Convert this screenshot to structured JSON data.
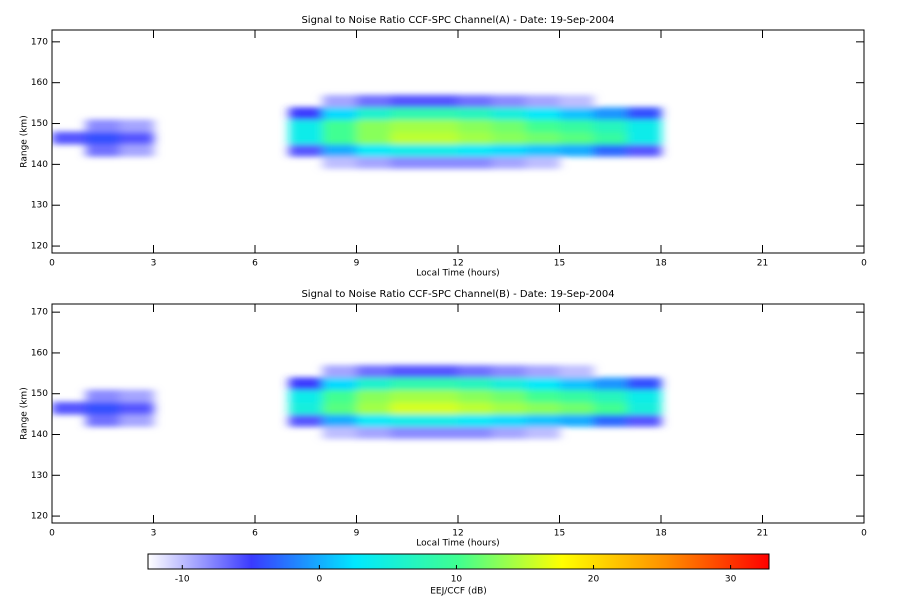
{
  "chart_data": [
    {
      "type": "heatmap",
      "title": "Signal to Noise Ratio CCF-SPC Channel(A) - Date: 19-Sep-2004",
      "xlabel": "Local Time (hours)",
      "ylabel": "Range (km)",
      "xlim": [
        0,
        24
      ],
      "xticks": [
        0,
        3,
        6,
        9,
        12,
        15,
        18,
        21,
        {
          "value": 24,
          "label": "0"
        }
      ],
      "ylim": [
        118.3,
        172.9
      ],
      "yticks": [
        120,
        130,
        140,
        150,
        160,
        170
      ],
      "xbins": [
        0,
        1,
        2,
        3,
        4,
        5,
        6,
        7,
        8,
        9,
        10,
        11,
        12,
        13,
        14,
        15,
        16,
        17,
        18,
        19,
        20,
        21,
        22,
        23,
        24
      ],
      "ybins": [
        139,
        142,
        145,
        148,
        151,
        154,
        157
      ],
      "values": [
        [
          null,
          null,
          -6,
          null,
          null,
          null
        ],
        [
          null,
          -7,
          -4,
          -8,
          null,
          null
        ],
        [
          null,
          -9,
          -6,
          -9,
          null,
          null
        ],
        [
          null,
          null,
          null,
          null,
          null,
          null
        ],
        [
          null,
          null,
          null,
          null,
          null,
          null
        ],
        [
          null,
          null,
          null,
          null,
          null,
          null
        ],
        [
          null,
          null,
          null,
          null,
          null,
          null
        ],
        [
          null,
          -6,
          4,
          4,
          -5,
          null
        ],
        [
          -10,
          0,
          10,
          10,
          2,
          -9
        ],
        [
          -9,
          3,
          13,
          13,
          6,
          -7
        ],
        [
          -8,
          4,
          15,
          14,
          8,
          -6
        ],
        [
          -8,
          4,
          15,
          14,
          8,
          -6
        ],
        [
          -8,
          3,
          14,
          13,
          7,
          -7
        ],
        [
          -9,
          2,
          13,
          12,
          5,
          -8
        ],
        [
          -10,
          1,
          12,
          10,
          3,
          -9
        ],
        [
          null,
          0,
          11,
          9,
          1,
          -10
        ],
        [
          null,
          -3,
          9,
          7,
          -1,
          null
        ],
        [
          null,
          -6,
          4,
          4,
          -4,
          null
        ],
        [
          null,
          null,
          null,
          null,
          null,
          null
        ],
        [
          null,
          null,
          null,
          null,
          null,
          null
        ],
        [
          null,
          null,
          null,
          null,
          null,
          null
        ],
        [
          null,
          null,
          null,
          null,
          null,
          null
        ],
        [
          null,
          null,
          null,
          null,
          null,
          null
        ],
        [
          null,
          null,
          null,
          null,
          null,
          null
        ]
      ]
    },
    {
      "type": "heatmap",
      "title": "Signal to Noise Ratio CCF-SPC Channel(B) - Date: 19-Sep-2004",
      "xlabel": "Local Time (hours)",
      "ylabel": "Range (km)",
      "xlim": [
        0,
        24
      ],
      "xticks": [
        0,
        3,
        6,
        9,
        12,
        15,
        18,
        21,
        {
          "value": 24,
          "label": "0"
        }
      ],
      "ylim": [
        118.3,
        172
      ],
      "yticks": [
        120,
        130,
        140,
        150,
        160,
        170
      ],
      "xbins": [
        0,
        1,
        2,
        3,
        4,
        5,
        6,
        7,
        8,
        9,
        10,
        11,
        12,
        13,
        14,
        15,
        16,
        17,
        18,
        19,
        20,
        21,
        22,
        23,
        24
      ],
      "ybins": [
        139,
        142,
        145,
        148,
        151,
        154,
        157
      ],
      "values": [
        [
          null,
          null,
          -6,
          null,
          null,
          null
        ],
        [
          null,
          -7,
          -4,
          -8,
          null,
          null
        ],
        [
          null,
          -9,
          -6,
          -9,
          null,
          null
        ],
        [
          null,
          null,
          null,
          null,
          null,
          null
        ],
        [
          null,
          null,
          null,
          null,
          null,
          null
        ],
        [
          null,
          null,
          null,
          null,
          null,
          null
        ],
        [
          null,
          null,
          null,
          null,
          null,
          null
        ],
        [
          null,
          -6,
          5,
          4,
          -5,
          null
        ],
        [
          -10,
          0,
          11,
          10,
          2,
          -9
        ],
        [
          -9,
          3,
          14,
          13,
          6,
          -7
        ],
        [
          -8,
          4,
          16,
          14,
          8,
          -6
        ],
        [
          -8,
          4,
          16,
          14,
          8,
          -6
        ],
        [
          -8,
          3,
          15,
          13,
          7,
          -7
        ],
        [
          -9,
          2,
          14,
          12,
          5,
          -8
        ],
        [
          -10,
          1,
          13,
          10,
          3,
          -9
        ],
        [
          null,
          0,
          12,
          9,
          1,
          -10
        ],
        [
          null,
          -3,
          10,
          7,
          -1,
          null
        ],
        [
          null,
          -6,
          5,
          4,
          -4,
          null
        ],
        [
          null,
          null,
          null,
          null,
          null,
          null
        ],
        [
          null,
          null,
          null,
          null,
          null,
          null
        ],
        [
          null,
          null,
          null,
          null,
          null,
          null
        ],
        [
          null,
          null,
          null,
          null,
          null,
          null
        ],
        [
          null,
          null,
          null,
          null,
          null,
          null
        ],
        [
          null,
          null,
          null,
          null,
          null,
          null
        ]
      ]
    }
  ],
  "colorbar": {
    "label": "EEJ/CCF (dB)",
    "clim": [
      -12.5,
      32.8
    ],
    "ticks": [
      -10,
      0,
      10,
      20,
      30
    ],
    "colors": [
      "#ffffff",
      "#3a3aff",
      "#00e8ff",
      "#40ff90",
      "#ffff00",
      "#ff9000",
      "#ff0000"
    ]
  }
}
